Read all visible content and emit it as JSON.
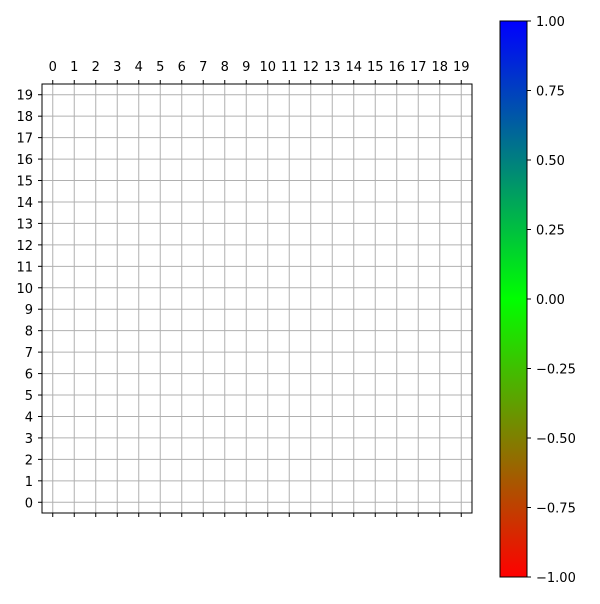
{
  "chart_data": [
    {
      "type": "heatmap",
      "x_ticks": [
        "0",
        "1",
        "2",
        "3",
        "4",
        "5",
        "6",
        "7",
        "8",
        "9",
        "10",
        "11",
        "12",
        "13",
        "14",
        "15",
        "16",
        "17",
        "18",
        "19"
      ],
      "y_ticks": [
        "0",
        "1",
        "2",
        "3",
        "4",
        "5",
        "6",
        "7",
        "8",
        "9",
        "10",
        "11",
        "12",
        "13",
        "14",
        "15",
        "16",
        "17",
        "18",
        "19"
      ],
      "xlim": [
        -0.5,
        19.5
      ],
      "ylim": [
        -0.5,
        19.5
      ],
      "x_tick_labels_position": "top",
      "values": [],
      "grid": true,
      "grid_color": "#b0b0b0",
      "title": "",
      "xlabel": "",
      "ylabel": ""
    },
    {
      "type": "colorbar",
      "range": [
        -1.0,
        1.0
      ],
      "ticks": [
        -1.0,
        -0.75,
        -0.5,
        -0.25,
        0.0,
        0.25,
        0.5,
        0.75,
        1.0
      ],
      "tick_labels": [
        "−1.00",
        "−0.75",
        "−0.50",
        "−0.25",
        "0.00",
        "0.25",
        "0.50",
        "0.75",
        "1.00"
      ],
      "colormap": [
        {
          "value": -1.0,
          "color": "#ff0000"
        },
        {
          "value": 0.0,
          "color": "#00ff00"
        },
        {
          "value": 1.0,
          "color": "#0000ff"
        }
      ]
    }
  ]
}
